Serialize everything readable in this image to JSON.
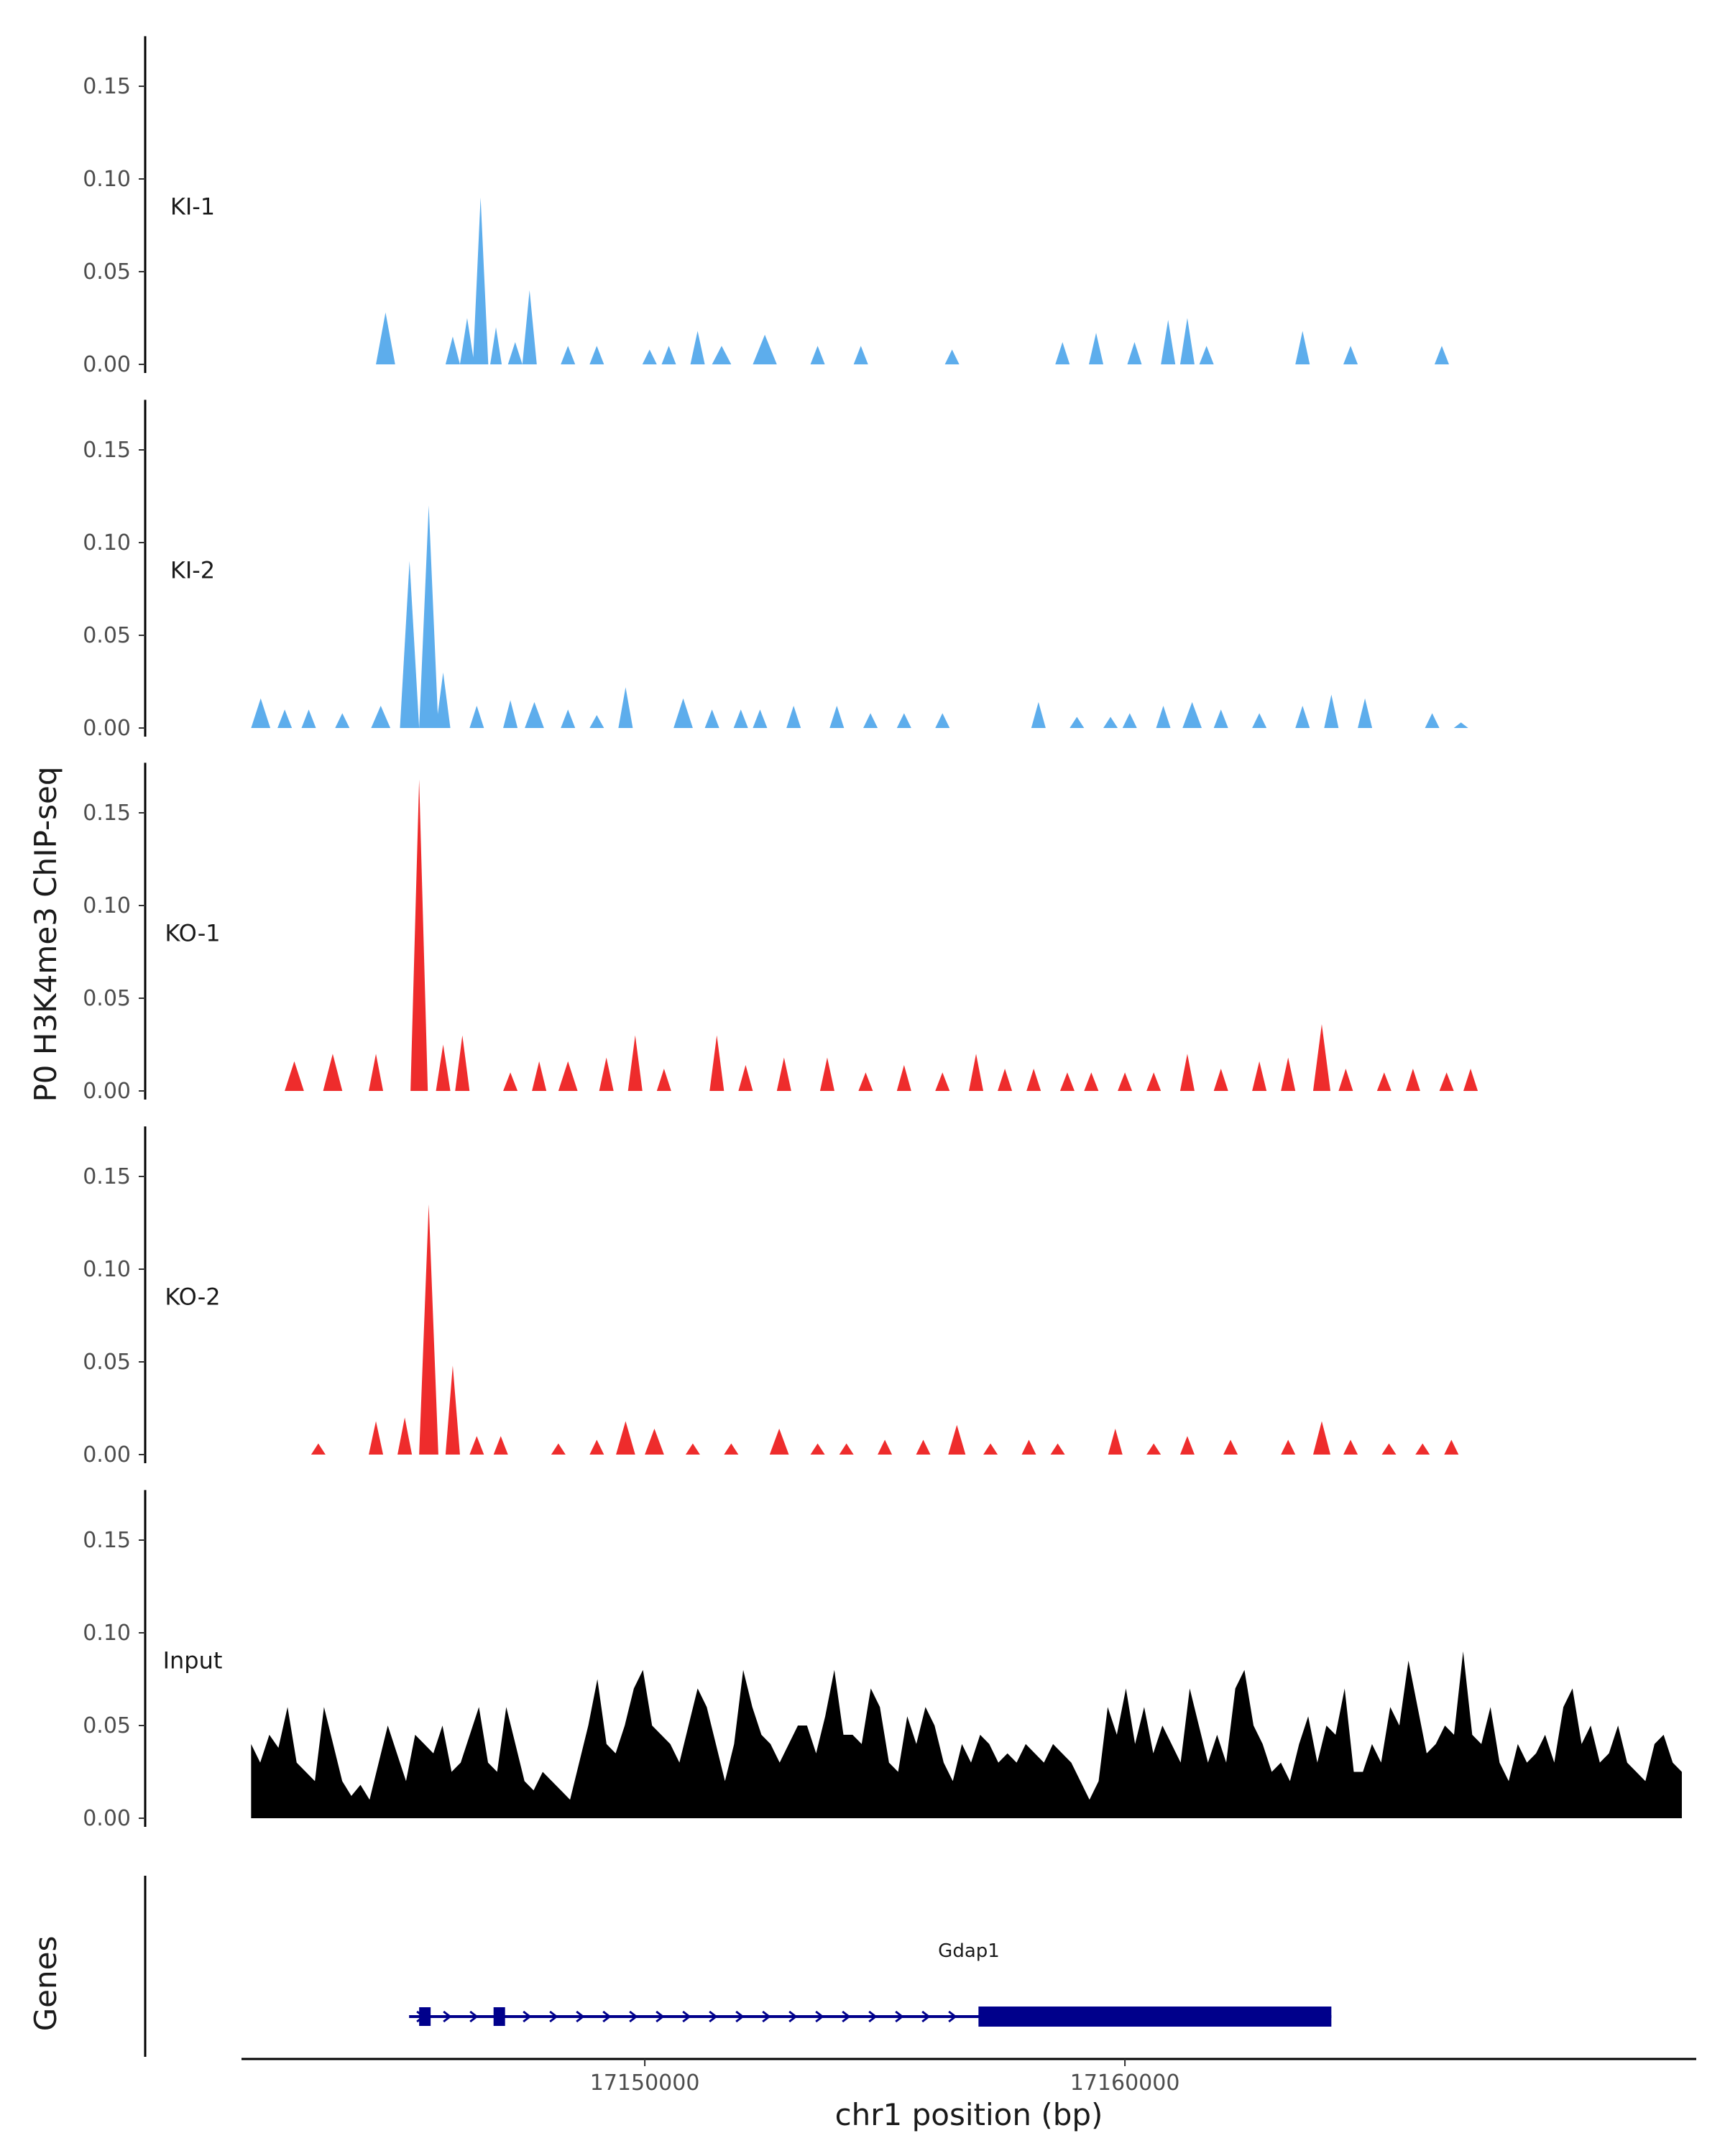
{
  "chart_data": {
    "type": "area",
    "ylabel": "P0 H3K4me3 ChIP-seq",
    "xlabel": "chr1 position (bp)",
    "ylim": [
      0,
      0.18
    ],
    "xlim": [
      17141600,
      17171900
    ],
    "grid": false,
    "y_ticks": [
      0.0,
      0.05,
      0.1,
      0.15
    ],
    "y_tick_labels": [
      "0.00",
      "0.05",
      "0.10",
      "0.15"
    ],
    "x_ticks": [
      17150000,
      17160000
    ],
    "x_tick_labels": [
      "17150000",
      "17160000"
    ],
    "genes_label": "Genes",
    "colors": {
      "KI": "#5DADEC",
      "KO": "#EE2C2C",
      "Input": "#000000",
      "gene": "#00008B"
    },
    "gene": {
      "name": "Gdap1",
      "start": 17145300,
      "end": 17164300,
      "exons": [
        [
          17145300,
          17145520
        ],
        [
          17146850,
          17147050
        ],
        [
          17156950,
          17164300
        ]
      ],
      "strand": "+"
    },
    "tracks": [
      {
        "name": "KI-1",
        "color": "#5DADEC",
        "peaks": [
          [
            17144600,
            0.028,
            200
          ],
          [
            17146000,
            0.015,
            150
          ],
          [
            17146300,
            0.025,
            150
          ],
          [
            17146580,
            0.09,
            160
          ],
          [
            17146900,
            0.02,
            120
          ],
          [
            17147300,
            0.012,
            150
          ],
          [
            17147600,
            0.04,
            150
          ],
          [
            17148400,
            0.01,
            150
          ],
          [
            17149000,
            0.01,
            150
          ],
          [
            17150100,
            0.008,
            150
          ],
          [
            17150500,
            0.01,
            150
          ],
          [
            17151100,
            0.018,
            150
          ],
          [
            17151600,
            0.01,
            200
          ],
          [
            17152500,
            0.016,
            250
          ],
          [
            17153600,
            0.01,
            150
          ],
          [
            17154500,
            0.01,
            150
          ],
          [
            17156400,
            0.008,
            150
          ],
          [
            17158700,
            0.012,
            150
          ],
          [
            17159400,
            0.017,
            150
          ],
          [
            17160200,
            0.012,
            150
          ],
          [
            17160900,
            0.024,
            150
          ],
          [
            17161300,
            0.025,
            150
          ],
          [
            17161700,
            0.01,
            150
          ],
          [
            17163700,
            0.018,
            150
          ],
          [
            17164700,
            0.01,
            150
          ],
          [
            17166600,
            0.01,
            150
          ]
        ]
      },
      {
        "name": "KI-2",
        "color": "#5DADEC",
        "peaks": [
          [
            17142000,
            0.016,
            200
          ],
          [
            17142500,
            0.01,
            150
          ],
          [
            17143000,
            0.01,
            150
          ],
          [
            17143700,
            0.008,
            150
          ],
          [
            17144500,
            0.012,
            200
          ],
          [
            17145100,
            0.09,
            200
          ],
          [
            17145500,
            0.12,
            200
          ],
          [
            17145800,
            0.03,
            150
          ],
          [
            17146500,
            0.012,
            150
          ],
          [
            17147200,
            0.015,
            150
          ],
          [
            17147700,
            0.014,
            200
          ],
          [
            17148400,
            0.01,
            150
          ],
          [
            17149000,
            0.007,
            150
          ],
          [
            17149600,
            0.022,
            150
          ],
          [
            17150800,
            0.016,
            200
          ],
          [
            17151400,
            0.01,
            150
          ],
          [
            17152000,
            0.01,
            150
          ],
          [
            17152400,
            0.01,
            150
          ],
          [
            17153100,
            0.012,
            150
          ],
          [
            17154000,
            0.012,
            150
          ],
          [
            17154700,
            0.008,
            150
          ],
          [
            17155400,
            0.008,
            150
          ],
          [
            17156200,
            0.008,
            150
          ],
          [
            17158200,
            0.014,
            150
          ],
          [
            17159000,
            0.006,
            150
          ],
          [
            17159700,
            0.006,
            150
          ],
          [
            17160100,
            0.008,
            150
          ],
          [
            17160800,
            0.012,
            150
          ],
          [
            17161400,
            0.014,
            200
          ],
          [
            17162000,
            0.01,
            150
          ],
          [
            17162800,
            0.008,
            150
          ],
          [
            17163700,
            0.012,
            150
          ],
          [
            17164300,
            0.018,
            150
          ],
          [
            17165000,
            0.016,
            150
          ],
          [
            17166400,
            0.008,
            150
          ],
          [
            17167000,
            0.003,
            150
          ]
        ]
      },
      {
        "name": "KO-1",
        "color": "#EE2C2C",
        "peaks": [
          [
            17142700,
            0.016,
            200
          ],
          [
            17143500,
            0.02,
            200
          ],
          [
            17144400,
            0.02,
            150
          ],
          [
            17145300,
            0.168,
            180
          ],
          [
            17145800,
            0.025,
            150
          ],
          [
            17146200,
            0.03,
            150
          ],
          [
            17147200,
            0.01,
            150
          ],
          [
            17147800,
            0.016,
            150
          ],
          [
            17148400,
            0.016,
            200
          ],
          [
            17149200,
            0.018,
            150
          ],
          [
            17149800,
            0.03,
            150
          ],
          [
            17150400,
            0.012,
            150
          ],
          [
            17151500,
            0.03,
            150
          ],
          [
            17152100,
            0.014,
            150
          ],
          [
            17152900,
            0.018,
            150
          ],
          [
            17153800,
            0.018,
            150
          ],
          [
            17154600,
            0.01,
            150
          ],
          [
            17155400,
            0.014,
            150
          ],
          [
            17156200,
            0.01,
            150
          ],
          [
            17156900,
            0.02,
            150
          ],
          [
            17157500,
            0.012,
            150
          ],
          [
            17158100,
            0.012,
            150
          ],
          [
            17158800,
            0.01,
            150
          ],
          [
            17159300,
            0.01,
            150
          ],
          [
            17160000,
            0.01,
            150
          ],
          [
            17160600,
            0.01,
            150
          ],
          [
            17161300,
            0.02,
            150
          ],
          [
            17162000,
            0.012,
            150
          ],
          [
            17162800,
            0.016,
            150
          ],
          [
            17163400,
            0.018,
            150
          ],
          [
            17164100,
            0.036,
            180
          ],
          [
            17164600,
            0.012,
            150
          ],
          [
            17165400,
            0.01,
            150
          ],
          [
            17166000,
            0.012,
            150
          ],
          [
            17166700,
            0.01,
            150
          ],
          [
            17167200,
            0.012,
            150
          ]
        ]
      },
      {
        "name": "KO-2",
        "color": "#EE2C2C",
        "peaks": [
          [
            17143200,
            0.006,
            150
          ],
          [
            17144400,
            0.018,
            150
          ],
          [
            17145000,
            0.02,
            150
          ],
          [
            17145500,
            0.135,
            200
          ],
          [
            17146000,
            0.048,
            150
          ],
          [
            17146500,
            0.01,
            150
          ],
          [
            17147000,
            0.01,
            150
          ],
          [
            17148200,
            0.006,
            150
          ],
          [
            17149000,
            0.008,
            150
          ],
          [
            17149600,
            0.018,
            200
          ],
          [
            17150200,
            0.014,
            200
          ],
          [
            17151000,
            0.006,
            150
          ],
          [
            17151800,
            0.006,
            150
          ],
          [
            17152800,
            0.014,
            200
          ],
          [
            17153600,
            0.006,
            150
          ],
          [
            17154200,
            0.006,
            150
          ],
          [
            17155000,
            0.008,
            150
          ],
          [
            17155800,
            0.008,
            150
          ],
          [
            17156500,
            0.016,
            180
          ],
          [
            17157200,
            0.006,
            150
          ],
          [
            17158000,
            0.008,
            150
          ],
          [
            17158600,
            0.006,
            150
          ],
          [
            17159800,
            0.014,
            150
          ],
          [
            17160600,
            0.006,
            150
          ],
          [
            17161300,
            0.01,
            150
          ],
          [
            17162200,
            0.008,
            150
          ],
          [
            17163400,
            0.008,
            150
          ],
          [
            17164100,
            0.018,
            180
          ],
          [
            17164700,
            0.008,
            150
          ],
          [
            17165500,
            0.006,
            150
          ],
          [
            17166200,
            0.006,
            150
          ],
          [
            17166800,
            0.008,
            150
          ]
        ]
      },
      {
        "name": "Input",
        "color": "#000000",
        "profile": [
          0.04,
          0.03,
          0.045,
          0.038,
          0.06,
          0.03,
          0.025,
          0.02,
          0.06,
          0.04,
          0.02,
          0.012,
          0.018,
          0.01,
          0.03,
          0.05,
          0.035,
          0.02,
          0.045,
          0.04,
          0.035,
          0.05,
          0.025,
          0.03,
          0.045,
          0.06,
          0.03,
          0.025,
          0.06,
          0.04,
          0.02,
          0.015,
          0.025,
          0.02,
          0.015,
          0.01,
          0.03,
          0.05,
          0.075,
          0.04,
          0.035,
          0.05,
          0.07,
          0.08,
          0.05,
          0.045,
          0.04,
          0.03,
          0.05,
          0.07,
          0.06,
          0.04,
          0.02,
          0.04,
          0.08,
          0.06,
          0.045,
          0.04,
          0.03,
          0.04,
          0.05,
          0.05,
          0.035,
          0.055,
          0.08,
          0.045,
          0.045,
          0.04,
          0.07,
          0.06,
          0.03,
          0.025,
          0.055,
          0.04,
          0.06,
          0.05,
          0.03,
          0.02,
          0.04,
          0.03,
          0.045,
          0.04,
          0.03,
          0.035,
          0.03,
          0.04,
          0.035,
          0.03,
          0.04,
          0.035,
          0.03,
          0.02,
          0.01,
          0.02,
          0.06,
          0.045,
          0.07,
          0.04,
          0.06,
          0.035,
          0.05,
          0.04,
          0.03,
          0.07,
          0.05,
          0.03,
          0.045,
          0.03,
          0.07,
          0.08,
          0.05,
          0.04,
          0.025,
          0.03,
          0.02,
          0.04,
          0.055,
          0.03,
          0.05,
          0.045,
          0.07,
          0.025,
          0.025,
          0.04,
          0.03,
          0.06,
          0.05,
          0.085,
          0.06,
          0.035,
          0.04,
          0.05,
          0.045,
          0.09,
          0.045,
          0.04,
          0.06,
          0.03,
          0.02,
          0.04,
          0.03,
          0.035,
          0.045,
          0.03,
          0.06,
          0.07,
          0.04,
          0.05,
          0.03,
          0.035,
          0.05,
          0.03,
          0.025,
          0.02,
          0.04,
          0.045,
          0.03,
          0.025
        ]
      }
    ]
  }
}
